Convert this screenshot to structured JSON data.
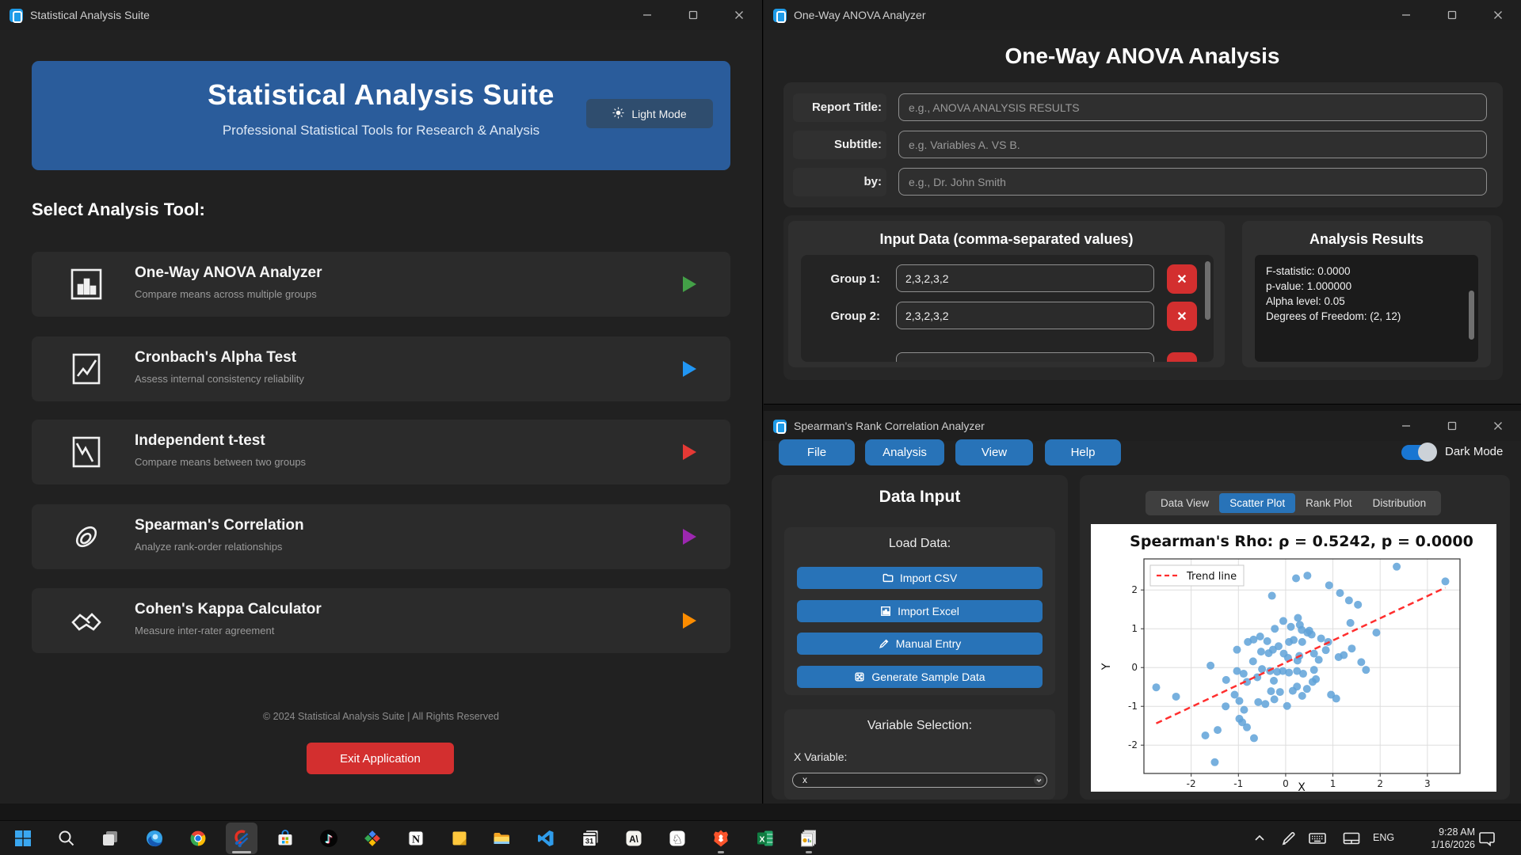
{
  "colors": {
    "accent_blue": "#2873b8",
    "hero_blue": "#2a5c9b",
    "danger_red": "#d32f2f",
    "toggle_blue": "#1976d2",
    "scatter_point": "#5fa2d8",
    "trend_red": "#ff2e2e"
  },
  "left_window": {
    "titlebar": "Statistical Analysis Suite",
    "header": {
      "title": "Statistical Analysis Suite",
      "subtitle": "Professional Statistical Tools for Research & Analysis",
      "light_mode_label": "Light Mode"
    },
    "section_heading": "Select Analysis Tool:",
    "tools": [
      {
        "title": "One-Way ANOVA Analyzer",
        "desc": "Compare means across multiple groups",
        "icon": "bar-chart-icon",
        "arrow_color": "#43a047"
      },
      {
        "title": "Cronbach's Alpha Test",
        "desc": "Assess internal consistency reliability",
        "icon": "line-check-icon",
        "arrow_color": "#2196f3"
      },
      {
        "title": "Independent t-test",
        "desc": "Compare means between two groups",
        "icon": "declining-chart-icon",
        "arrow_color": "#e53935"
      },
      {
        "title": "Spearman's Correlation",
        "desc": "Analyze rank-order relationships",
        "icon": "paperclip-icon",
        "arrow_color": "#9c27b0"
      },
      {
        "title": "Cohen's Kappa Calculator",
        "desc": "Measure inter-rater agreement",
        "icon": "handshake-icon",
        "arrow_color": "#fb8c00"
      }
    ],
    "footer": "© 2024 Statistical Analysis Suite | All Rights Reserved",
    "exit_button": "Exit Application"
  },
  "anova_window": {
    "titlebar": "One-Way ANOVA Analyzer",
    "heading": "One-Way ANOVA Analysis",
    "form_rows": [
      {
        "label": "Report Title:",
        "placeholder": "e.g., ANOVA ANALYSIS RESULTS"
      },
      {
        "label": "Subtitle:",
        "placeholder": "e.g. Variables A. VS B."
      },
      {
        "label": "by:",
        "placeholder": "e.g., Dr. John Smith"
      }
    ],
    "input_panel": {
      "heading": "Input Data (comma-separated values)",
      "groups": [
        {
          "label": "Group 1:",
          "value": "2,3,2,3,2"
        },
        {
          "label": "Group 2:",
          "value": "2,3,2,3,2"
        }
      ],
      "delete_label": "✕"
    },
    "results_panel": {
      "heading": "Analysis Results",
      "lines": [
        "F-statistic: 0.0000",
        "p-value: 1.000000",
        "Alpha level: 0.05",
        "Degrees of Freedom: (2, 12)"
      ]
    }
  },
  "spearman_window": {
    "titlebar": "Spearman's Rank Correlation Analyzer",
    "menus": [
      "File",
      "Analysis",
      "View",
      "Help"
    ],
    "dark_mode_label": "Dark Mode",
    "dark_mode_on": true,
    "data_input": {
      "heading": "Data Input",
      "load_heading": "Load Data:",
      "buttons": [
        {
          "label": "Import CSV",
          "icon": "folder-icon"
        },
        {
          "label": "Import Excel",
          "icon": "chart-icon"
        },
        {
          "label": "Manual Entry",
          "icon": "pencil-icon"
        },
        {
          "label": "Generate Sample Data",
          "icon": "dice-icon"
        }
      ],
      "variable_heading": "Variable Selection:",
      "x_variable_label": "X Variable:",
      "x_variable_value": "x"
    },
    "tabs": [
      {
        "label": "Data View",
        "active": false
      },
      {
        "label": "Scatter Plot",
        "active": true
      },
      {
        "label": "Rank Plot",
        "active": false
      },
      {
        "label": "Distribution",
        "active": false
      }
    ]
  },
  "chart_data": {
    "type": "scatter",
    "title": "Spearman's Rho: ρ = 0.5242, p = 0.0000",
    "xlabel": "X",
    "ylabel": "Y",
    "xlim": [
      -3.0,
      3.69
    ],
    "ylim": [
      -2.73,
      2.8
    ],
    "xticks": [
      -2,
      -1,
      0,
      1,
      2,
      3
    ],
    "yticks": [
      -2,
      -1,
      0,
      1,
      2
    ],
    "grid": true,
    "legend": {
      "label": "Trend line",
      "position": "upper left"
    },
    "trend": {
      "x1": -2.74,
      "y1": -1.44,
      "x2": 3.38,
      "y2": 2.06
    },
    "points": [
      [
        2.35,
        2.6
      ],
      [
        3.38,
        2.22
      ],
      [
        0.22,
        2.3
      ],
      [
        0.46,
        2.37
      ],
      [
        0.92,
        2.12
      ],
      [
        -0.29,
        1.85
      ],
      [
        1.15,
        1.92
      ],
      [
        1.34,
        1.73
      ],
      [
        1.53,
        1.62
      ],
      [
        1.37,
        1.15
      ],
      [
        -0.05,
        1.2
      ],
      [
        0.26,
        1.28
      ],
      [
        0.11,
        1.05
      ],
      [
        -0.23,
        1.0
      ],
      [
        0.34,
        0.97
      ],
      [
        0.46,
        0.9
      ],
      [
        1.92,
        0.9
      ],
      [
        -0.68,
        0.72
      ],
      [
        -0.54,
        0.8
      ],
      [
        -0.8,
        0.66
      ],
      [
        -0.39,
        0.68
      ],
      [
        0.07,
        0.66
      ],
      [
        0.17,
        0.71
      ],
      [
        0.35,
        0.66
      ],
      [
        0.9,
        0.66
      ],
      [
        -1.03,
        0.46
      ],
      [
        -0.52,
        0.41
      ],
      [
        -0.36,
        0.37
      ],
      [
        -0.27,
        0.46
      ],
      [
        -0.04,
        0.36
      ],
      [
        0.29,
        0.3
      ],
      [
        0.6,
        0.36
      ],
      [
        1.4,
        0.49
      ],
      [
        1.12,
        0.27
      ],
      [
        1.23,
        0.32
      ],
      [
        0.7,
        0.2
      ],
      [
        0.25,
        0.18
      ],
      [
        -0.69,
        0.16
      ],
      [
        -1.59,
        0.05
      ],
      [
        1.6,
        0.14
      ],
      [
        -1.03,
        -0.09
      ],
      [
        -0.89,
        -0.16
      ],
      [
        -0.5,
        -0.04
      ],
      [
        -0.33,
        -0.09
      ],
      [
        -0.18,
        -0.11
      ],
      [
        -0.06,
        -0.09
      ],
      [
        0.07,
        -0.13
      ],
      [
        0.24,
        -0.09
      ],
      [
        0.37,
        -0.16
      ],
      [
        0.6,
        -0.06
      ],
      [
        1.7,
        -0.06
      ],
      [
        -1.26,
        -0.32
      ],
      [
        -0.82,
        -0.37
      ],
      [
        -0.25,
        -0.34
      ],
      [
        0.57,
        -0.37
      ],
      [
        0.64,
        -0.3
      ],
      [
        0.24,
        -0.49
      ],
      [
        -2.74,
        -0.51
      ],
      [
        -2.32,
        -0.75
      ],
      [
        -0.31,
        -0.61
      ],
      [
        -0.12,
        -0.63
      ],
      [
        0.35,
        -0.73
      ],
      [
        0.96,
        -0.7
      ],
      [
        1.07,
        -0.8
      ],
      [
        -1.08,
        -0.7
      ],
      [
        -0.98,
        -0.86
      ],
      [
        -0.58,
        -0.89
      ],
      [
        -0.43,
        -0.94
      ],
      [
        -0.24,
        -0.82
      ],
      [
        0.03,
        -0.99
      ],
      [
        -1.27,
        -1.0
      ],
      [
        -0.88,
        -1.09
      ],
      [
        -0.98,
        -1.32
      ],
      [
        -0.92,
        -1.41
      ],
      [
        -0.82,
        -1.54
      ],
      [
        -0.67,
        -1.82
      ],
      [
        -1.7,
        -1.75
      ],
      [
        -1.44,
        -1.61
      ],
      [
        -1.5,
        -2.44
      ],
      [
        0.5,
        0.95
      ],
      [
        0.55,
        0.85
      ],
      [
        0.3,
        1.1
      ],
      [
        -0.15,
        0.55
      ],
      [
        0.05,
        0.25
      ],
      [
        0.45,
        -0.55
      ],
      [
        0.15,
        -0.6
      ],
      [
        -0.6,
        -0.25
      ],
      [
        0.85,
        0.45
      ],
      [
        0.75,
        0.75
      ]
    ]
  },
  "taskbar": {
    "apps": [
      {
        "icon": "start-icon"
      },
      {
        "icon": "search-icon"
      },
      {
        "icon": "task-view-icon"
      },
      {
        "icon": "edge-icon"
      },
      {
        "icon": "chrome-icon"
      },
      {
        "icon": "stats-app-icon",
        "active": true
      },
      {
        "icon": "store-icon"
      },
      {
        "icon": "tiktok-icon"
      },
      {
        "icon": "share-icon"
      },
      {
        "icon": "notion-icon"
      },
      {
        "icon": "sticky-notes-icon"
      },
      {
        "icon": "file-explorer-icon"
      },
      {
        "icon": "vscode-icon"
      },
      {
        "icon": "calendar-icon"
      },
      {
        "icon": "claude-icon"
      },
      {
        "icon": "chess-icon"
      },
      {
        "icon": "brave-icon",
        "running": true
      },
      {
        "icon": "excel-icon"
      },
      {
        "icon": "reports-icon",
        "running": true
      }
    ],
    "tray": {
      "language": "ENG",
      "time": "9:28 AM",
      "date": "1/16/2026"
    }
  }
}
